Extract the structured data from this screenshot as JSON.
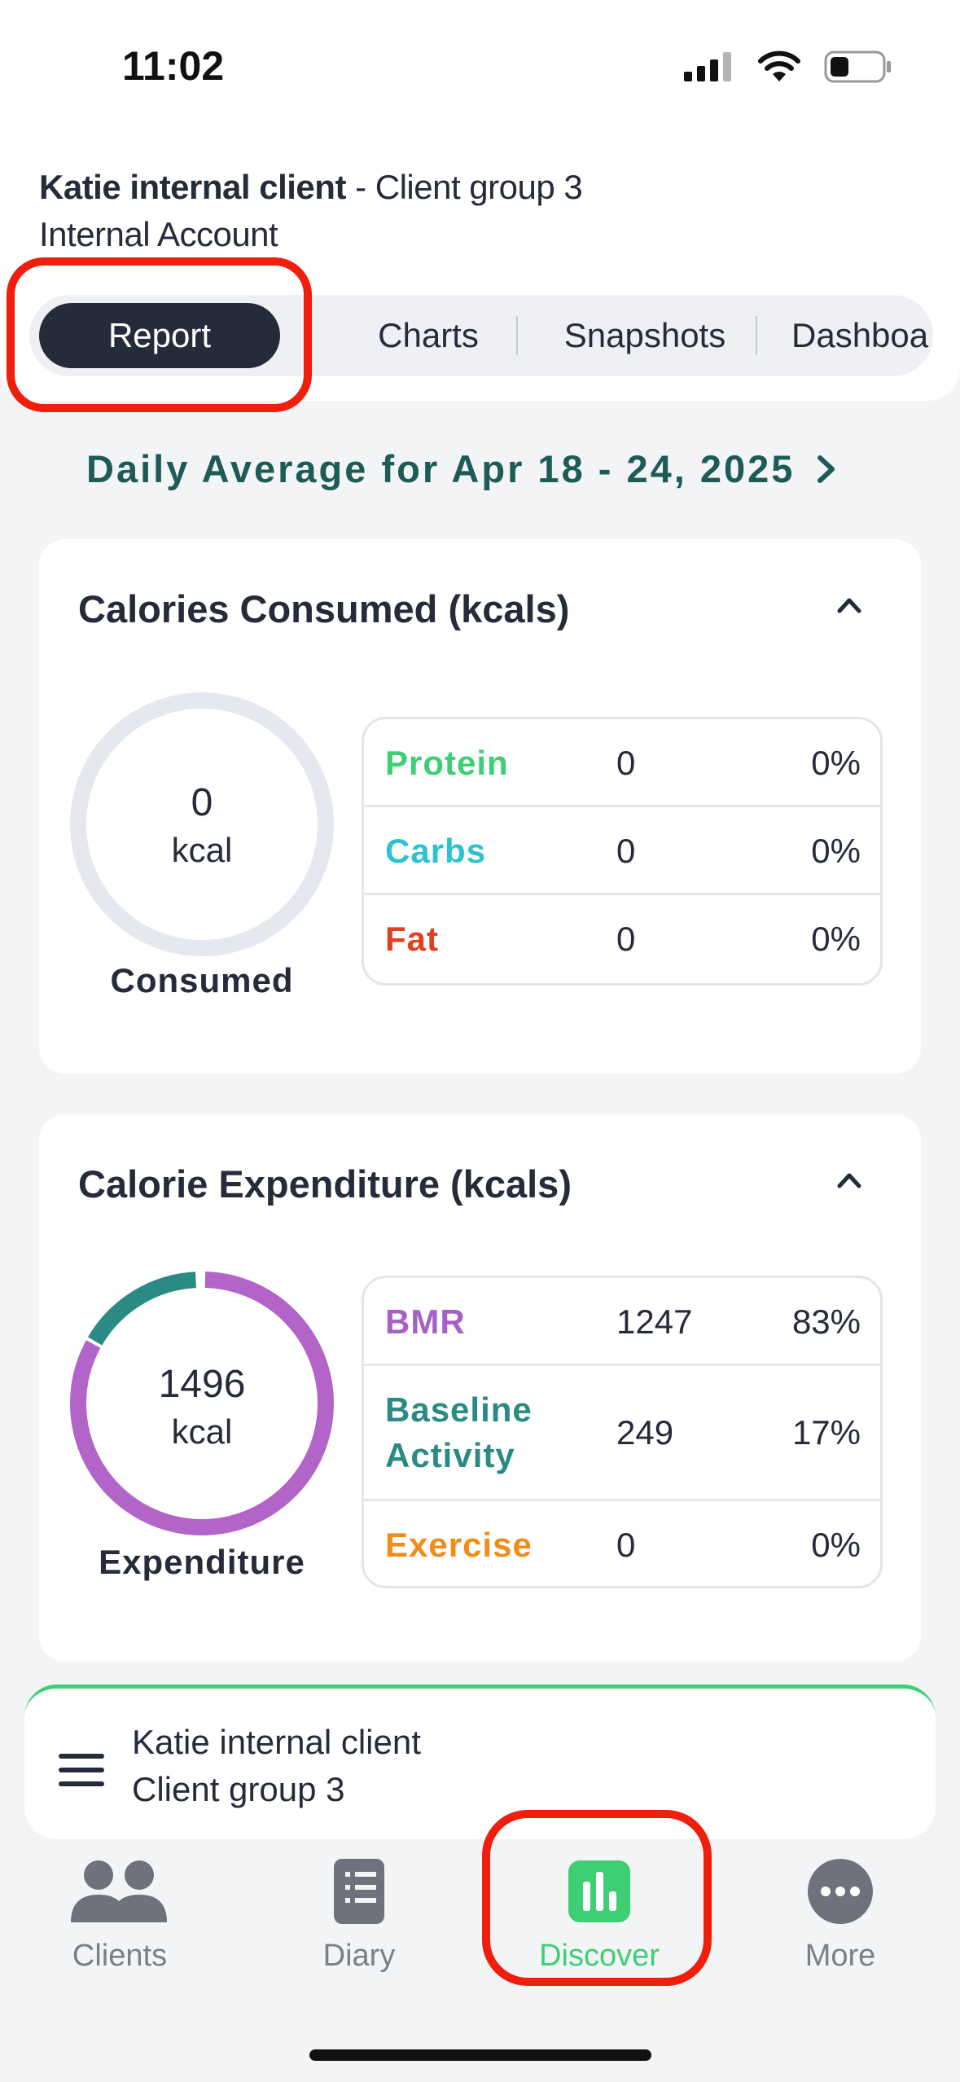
{
  "status_bar": {
    "time": "11:02",
    "icons": [
      "signal-icon",
      "wifi-icon",
      "battery-icon"
    ]
  },
  "header": {
    "client_name": "Katie internal client",
    "client_group_suffix": " - Client group 3",
    "account": "Internal Account"
  },
  "tabs": [
    {
      "label": "Report",
      "active": true
    },
    {
      "label": "Charts",
      "active": false
    },
    {
      "label": "Snapshots",
      "active": false
    },
    {
      "label": "Dashboa",
      "active": false
    }
  ],
  "date_range": {
    "label": "Daily Average for Apr 18 - 24, 2025"
  },
  "consumed_card": {
    "title": "Calories Consumed (kcals)",
    "ring_value": "0",
    "ring_unit": "kcal",
    "ring_caption": "Consumed",
    "rows": [
      {
        "name": "Protein",
        "value": "0",
        "percent": "0%",
        "color": "#3ecf74"
      },
      {
        "name": "Carbs",
        "value": "0",
        "percent": "0%",
        "color": "#2cc3d0"
      },
      {
        "name": "Fat",
        "value": "0",
        "percent": "0%",
        "color": "#e2401c"
      }
    ]
  },
  "expenditure_card": {
    "title": "Calorie Expenditure (kcals)",
    "ring_value": "1496",
    "ring_unit": "kcal",
    "ring_caption": "Expenditure",
    "rows": [
      {
        "name": "BMR",
        "value": "1247",
        "percent": "83%",
        "color": "#a760c6"
      },
      {
        "name": "Baseline Activity",
        "value": "249",
        "percent": "17%",
        "color": "#2b8a84"
      },
      {
        "name": "Exercise",
        "value": "0",
        "percent": "0%",
        "color": "#f08c17"
      }
    ]
  },
  "client_bar": {
    "name": "Katie internal client",
    "group": "Client group 3"
  },
  "bottom_nav": [
    {
      "label": "Clients",
      "icon": "clients-icon",
      "active": false
    },
    {
      "label": "Diary",
      "icon": "diary-icon",
      "active": false
    },
    {
      "label": "Discover",
      "icon": "discover-icon",
      "active": true
    },
    {
      "label": "More",
      "icon": "more-icon",
      "active": false
    }
  ],
  "colors": {
    "accent": "#3ecf74",
    "dark": "#262b3a",
    "teal_text": "#1d5b56",
    "highlight": "#f01e0c"
  }
}
